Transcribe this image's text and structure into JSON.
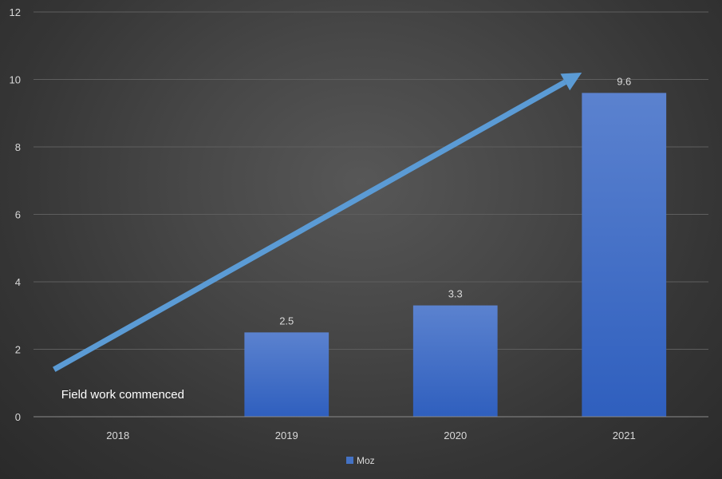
{
  "chart_data": {
    "type": "bar",
    "title": "",
    "xlabel": "",
    "ylabel": "",
    "categories": [
      "2018",
      "2019",
      "2020",
      "2021"
    ],
    "series": [
      {
        "name": "Moz",
        "values": [
          0,
          2.5,
          3.3,
          9.6
        ],
        "data_labels": [
          "",
          "2.5",
          "3.3",
          "9.6"
        ],
        "color": "#4472c4"
      }
    ],
    "ylim": [
      0,
      12
    ],
    "yticks": [
      "0",
      "2",
      "4",
      "6",
      "8",
      "10",
      "12"
    ],
    "grid": true,
    "legend_position": "bottom",
    "annotations": [
      {
        "text": "Field work commenced",
        "near_category": "2018"
      }
    ],
    "trend_arrow": {
      "color": "#5b9bd5",
      "from": {
        "x": "2018",
        "y": 1.4
      },
      "to": {
        "x": "2021",
        "y": 10.2
      }
    },
    "colors": {
      "bar_top": "#5b82cf",
      "bar_bottom": "#2f5fbe",
      "grid": "#5e5e5e",
      "axis": "#8a8a8a"
    }
  }
}
